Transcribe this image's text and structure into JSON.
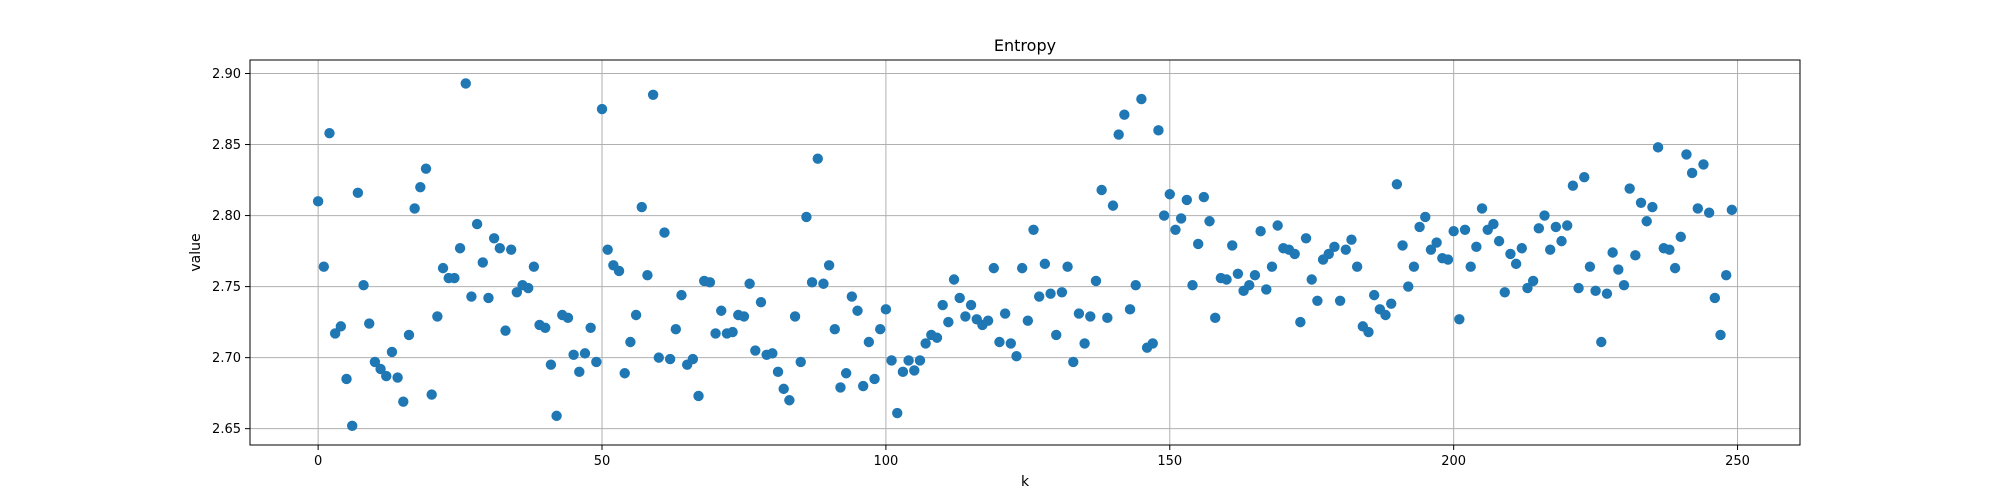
{
  "chart_data": {
    "type": "scatter",
    "title": "Entropy",
    "xlabel": "k",
    "ylabel": "value",
    "xlim": [
      -12,
      261
    ],
    "ylim": [
      2.6385,
      2.9095
    ],
    "xticks": [
      0,
      50,
      100,
      150,
      200,
      250
    ],
    "yticks": [
      2.65,
      2.7,
      2.75,
      2.8,
      2.85,
      2.9
    ],
    "xtick_labels": [
      "0",
      "50",
      "100",
      "150",
      "200",
      "250"
    ],
    "ytick_labels": [
      "2.65",
      "2.70",
      "2.75",
      "2.80",
      "2.85",
      "2.90"
    ],
    "grid": true,
    "color": "#1f77b4",
    "x": [
      0,
      1,
      2,
      3,
      4,
      5,
      6,
      7,
      8,
      9,
      10,
      11,
      12,
      13,
      14,
      15,
      16,
      17,
      18,
      19,
      20,
      21,
      22,
      23,
      24,
      25,
      26,
      27,
      28,
      29,
      30,
      31,
      32,
      33,
      34,
      35,
      36,
      37,
      38,
      39,
      40,
      41,
      42,
      43,
      44,
      45,
      46,
      47,
      48,
      49,
      50,
      51,
      52,
      53,
      54,
      55,
      56,
      57,
      58,
      59,
      60,
      61,
      62,
      63,
      64,
      65,
      66,
      67,
      68,
      69,
      70,
      71,
      72,
      73,
      74,
      75,
      76,
      77,
      78,
      79,
      80,
      81,
      82,
      83,
      84,
      85,
      86,
      87,
      88,
      89,
      90,
      91,
      92,
      93,
      94,
      95,
      96,
      97,
      98,
      99,
      100,
      101,
      102,
      103,
      104,
      105,
      106,
      107,
      108,
      109,
      110,
      111,
      112,
      113,
      114,
      115,
      116,
      117,
      118,
      119,
      120,
      121,
      122,
      123,
      124,
      125,
      126,
      127,
      128,
      129,
      130,
      131,
      132,
      133,
      134,
      135,
      136,
      137,
      138,
      139,
      140,
      141,
      142,
      143,
      144,
      145,
      146,
      147,
      148,
      149,
      150,
      151,
      152,
      153,
      154,
      155,
      156,
      157,
      158,
      159,
      160,
      161,
      162,
      163,
      164,
      165,
      166,
      167,
      168,
      169,
      170,
      171,
      172,
      173,
      174,
      175,
      176,
      177,
      178,
      179,
      180,
      181,
      182,
      183,
      184,
      185,
      186,
      187,
      188,
      189,
      190,
      191,
      192,
      193,
      194,
      195,
      196,
      197,
      198,
      199,
      200,
      201,
      202,
      203,
      204,
      205,
      206,
      207,
      208,
      209,
      210,
      211,
      212,
      213,
      214,
      215,
      216,
      217,
      218,
      219,
      220,
      221,
      222,
      223,
      224,
      225,
      226,
      227,
      228,
      229,
      230,
      231,
      232,
      233,
      234,
      235,
      236,
      237,
      238,
      239,
      240,
      241,
      242,
      243,
      244,
      245,
      246,
      247,
      248,
      249
    ],
    "y": [
      2.81,
      2.764,
      2.858,
      2.717,
      2.722,
      2.685,
      2.652,
      2.816,
      2.751,
      2.724,
      2.697,
      2.692,
      2.687,
      2.704,
      2.686,
      2.669,
      2.716,
      2.805,
      2.82,
      2.833,
      2.674,
      2.729,
      2.763,
      2.756,
      2.756,
      2.777,
      2.893,
      2.743,
      2.794,
      2.767,
      2.742,
      2.784,
      2.777,
      2.719,
      2.776,
      2.746,
      2.751,
      2.749,
      2.764,
      2.723,
      2.721,
      2.695,
      2.659,
      2.73,
      2.728,
      2.702,
      2.69,
      2.703,
      2.721,
      2.697,
      2.875,
      2.776,
      2.765,
      2.761,
      2.689,
      2.711,
      2.73,
      2.806,
      2.758,
      2.885,
      2.7,
      2.788,
      2.699,
      2.72,
      2.744,
      2.695,
      2.699,
      2.673,
      2.754,
      2.753,
      2.717,
      2.733,
      2.717,
      2.718,
      2.73,
      2.729,
      2.752,
      2.705,
      2.739,
      2.702,
      2.703,
      2.69,
      2.678,
      2.67,
      2.729,
      2.697,
      2.799,
      2.753,
      2.84,
      2.752,
      2.765,
      2.72,
      2.679,
      2.689,
      2.743,
      2.733,
      2.68,
      2.711,
      2.685,
      2.72,
      2.734,
      2.698,
      2.661,
      2.69,
      2.698,
      2.691,
      2.698,
      2.71,
      2.716,
      2.714,
      2.737,
      2.725,
      2.755,
      2.742,
      2.729,
      2.737,
      2.727,
      2.723,
      2.726,
      2.763,
      2.711,
      2.731,
      2.71,
      2.701,
      2.763,
      2.726,
      2.79,
      2.743,
      2.766,
      2.745,
      2.716,
      2.746,
      2.764,
      2.697,
      2.731,
      2.71,
      2.729,
      2.754,
      2.818,
      2.728,
      2.807,
      2.857,
      2.871,
      2.734,
      2.751,
      2.882,
      2.707,
      2.71,
      2.86,
      2.8,
      2.815,
      2.79,
      2.798,
      2.811,
      2.751,
      2.78,
      2.813,
      2.796,
      2.728,
      2.756,
      2.755,
      2.779,
      2.759,
      2.747,
      2.751,
      2.758,
      2.789,
      2.748,
      2.764,
      2.793,
      2.777,
      2.776,
      2.773,
      2.725,
      2.784,
      2.755,
      2.74,
      2.769,
      2.773,
      2.778,
      2.74,
      2.776,
      2.783,
      2.764,
      2.722,
      2.718,
      2.744,
      2.734,
      2.73,
      2.738,
      2.822,
      2.779,
      2.75,
      2.764,
      2.792,
      2.799,
      2.776,
      2.781,
      2.77,
      2.769,
      2.789,
      2.727,
      2.79,
      2.764,
      2.778,
      2.805,
      2.79,
      2.794,
      2.782,
      2.746,
      2.773,
      2.766,
      2.777,
      2.749,
      2.754,
      2.791,
      2.8,
      2.776,
      2.792,
      2.782,
      2.793,
      2.821,
      2.749,
      2.827,
      2.764,
      2.747,
      2.711,
      2.745,
      2.774,
      2.762,
      2.751,
      2.819,
      2.772,
      2.809,
      2.796,
      2.806,
      2.848,
      2.777,
      2.776,
      2.763,
      2.785,
      2.843,
      2.83,
      2.805,
      2.836,
      2.802,
      2.742,
      2.716,
      2.758,
      2.804
    ]
  }
}
